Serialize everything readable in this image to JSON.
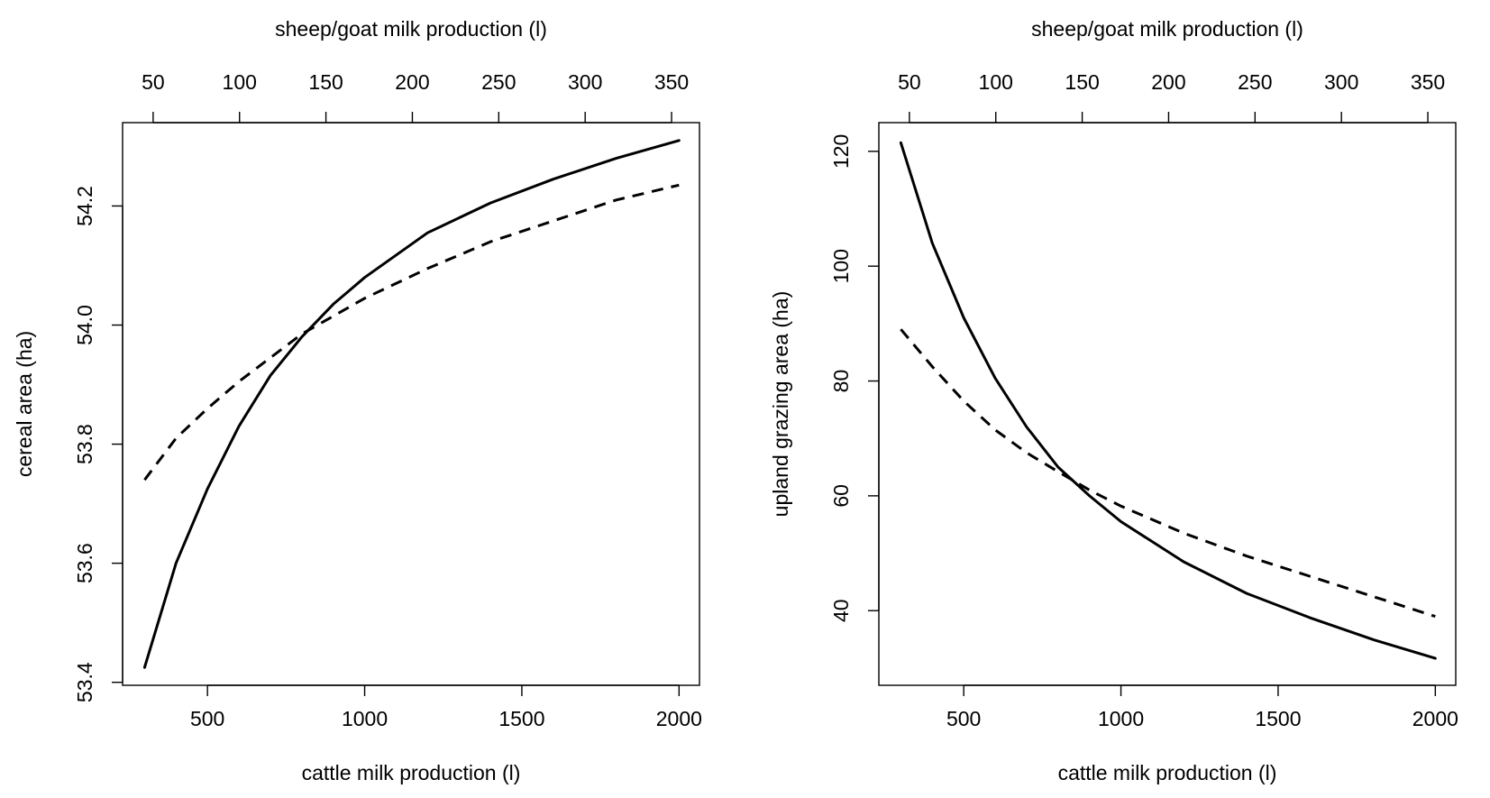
{
  "chart_data": [
    {
      "type": "line",
      "title": "",
      "xlabel": "cattle milk production (l)",
      "x2label": "sheep/goat milk production (l)",
      "ylabel": "cereal area (ha)",
      "xlim": [
        230,
        2065
      ],
      "x2lim": [
        32.33,
        366.15
      ],
      "ylim": [
        53.395,
        54.34
      ],
      "xticks": [
        500,
        1000,
        1500,
        2000
      ],
      "x2ticks": [
        50,
        100,
        150,
        200,
        250,
        300,
        350
      ],
      "yticks": [
        "53.4",
        "53.6",
        "53.8",
        "54.0",
        "54.2"
      ],
      "grid": false,
      "series": [
        {
          "style": "solid",
          "x": [
            300,
            400,
            500,
            600,
            700,
            800,
            900,
            1000,
            1200,
            1400,
            1600,
            1800,
            2000
          ],
          "y": [
            53.425,
            53.6,
            53.725,
            53.83,
            53.915,
            53.98,
            54.035,
            54.08,
            54.155,
            54.205,
            54.245,
            54.28,
            54.31
          ]
        },
        {
          "style": "dashed",
          "x": [
            300,
            400,
            500,
            600,
            700,
            800,
            900,
            1000,
            1200,
            1400,
            1600,
            1800,
            2000
          ],
          "y": [
            53.74,
            53.81,
            53.86,
            53.905,
            53.945,
            53.985,
            54.015,
            54.045,
            54.095,
            54.14,
            54.175,
            54.21,
            54.235
          ]
        }
      ]
    },
    {
      "type": "line",
      "title": "",
      "xlabel": "cattle milk production (l)",
      "x2label": "sheep/goat milk production (l)",
      "ylabel": "upland grazing area (ha)",
      "xlim": [
        230,
        2065
      ],
      "x2lim": [
        32.33,
        366.15
      ],
      "ylim": [
        27,
        125
      ],
      "xticks": [
        500,
        1000,
        1500,
        2000
      ],
      "x2ticks": [
        50,
        100,
        150,
        200,
        250,
        300,
        350
      ],
      "yticks": [
        "40",
        "60",
        "80",
        "100",
        "120"
      ],
      "grid": false,
      "series": [
        {
          "style": "solid",
          "x": [
            300,
            400,
            500,
            600,
            700,
            800,
            900,
            1000,
            1200,
            1400,
            1600,
            1800,
            2000
          ],
          "y": [
            121.5,
            104,
            91,
            80.5,
            72,
            65,
            60,
            55.5,
            48.5,
            43,
            38.8,
            35,
            31.7
          ]
        },
        {
          "style": "dashed",
          "x": [
            300,
            400,
            500,
            600,
            700,
            800,
            900,
            1000,
            1200,
            1400,
            1600,
            1800,
            2000
          ],
          "y": [
            89,
            82.5,
            76.5,
            71.5,
            67.5,
            64.2,
            61,
            58.2,
            53.5,
            49.5,
            46,
            42.5,
            39
          ]
        }
      ]
    }
  ]
}
